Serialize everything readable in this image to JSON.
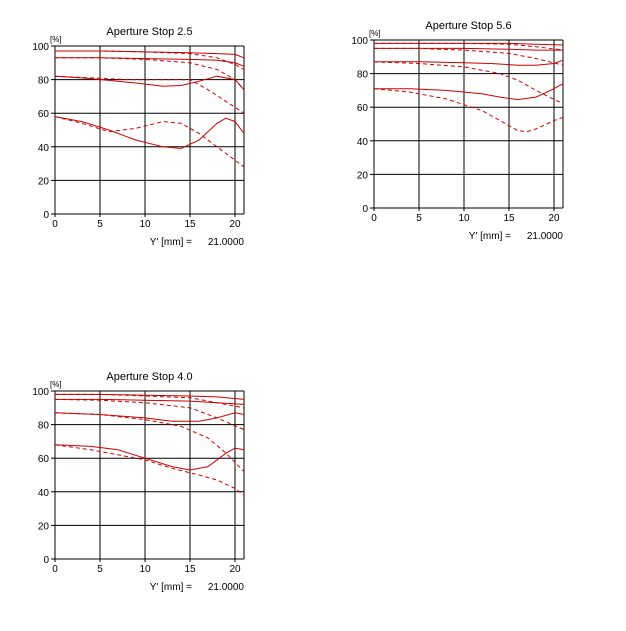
{
  "chart_data": [
    {
      "type": "line",
      "title": "Aperture Stop 2.5",
      "y_unit_label": "[%]",
      "footer_label": "Y' [mm] =",
      "footer_value": "21.0000",
      "xlim": [
        0,
        21
      ],
      "ylim": [
        0,
        100
      ],
      "x_ticks": [
        "0",
        "5",
        "10",
        "15",
        "20"
      ],
      "y_ticks": [
        "0",
        "20",
        "40",
        "60",
        "80",
        "100"
      ],
      "grid": true,
      "line_color": "#cc0000",
      "series": [
        {
          "style": "solid",
          "points": [
            [
              0,
              97
            ],
            [
              5,
              97
            ],
            [
              10,
              96.5
            ],
            [
              15,
              96
            ],
            [
              18,
              95.5
            ],
            [
              20,
              95
            ],
            [
              21,
              93
            ]
          ]
        },
        {
          "style": "dashed",
          "points": [
            [
              0,
              97
            ],
            [
              5,
              97
            ],
            [
              10,
              96.5
            ],
            [
              15,
              95.5
            ],
            [
              18,
              93
            ],
            [
              20,
              89
            ],
            [
              21,
              86
            ]
          ]
        },
        {
          "style": "solid",
          "points": [
            [
              0,
              93
            ],
            [
              5,
              93
            ],
            [
              10,
              92.5
            ],
            [
              15,
              92
            ],
            [
              18,
              91.5
            ],
            [
              20,
              90
            ],
            [
              21,
              88
            ]
          ]
        },
        {
          "style": "dashed",
          "points": [
            [
              0,
              93
            ],
            [
              5,
              93
            ],
            [
              10,
              92
            ],
            [
              15,
              90
            ],
            [
              18,
              86
            ],
            [
              20,
              80
            ],
            [
              21,
              74
            ]
          ]
        },
        {
          "style": "solid",
          "points": [
            [
              0,
              82
            ],
            [
              3,
              81
            ],
            [
              6,
              79.5
            ],
            [
              9,
              78
            ],
            [
              12,
              76
            ],
            [
              14,
              76.5
            ],
            [
              16,
              79
            ],
            [
              18,
              82
            ],
            [
              20,
              80
            ],
            [
              21,
              74
            ]
          ]
        },
        {
          "style": "dashed",
          "points": [
            [
              0,
              82
            ],
            [
              4,
              81
            ],
            [
              8,
              80
            ],
            [
              12,
              80
            ],
            [
              15,
              80
            ],
            [
              17,
              74
            ],
            [
              19,
              67
            ],
            [
              21,
              60
            ]
          ]
        },
        {
          "style": "solid",
          "points": [
            [
              0,
              58
            ],
            [
              3,
              55
            ],
            [
              6,
              50
            ],
            [
              9,
              44
            ],
            [
              12,
              40
            ],
            [
              14,
              39
            ],
            [
              16,
              44
            ],
            [
              18,
              54
            ],
            [
              19,
              57
            ],
            [
              20,
              55
            ],
            [
              21,
              48
            ]
          ]
        },
        {
          "style": "dashed",
          "points": [
            [
              0,
              58
            ],
            [
              3,
              54
            ],
            [
              6,
              49
            ],
            [
              9,
              51
            ],
            [
              12,
              55
            ],
            [
              14,
              54
            ],
            [
              16,
              48
            ],
            [
              18,
              40
            ],
            [
              20,
              32
            ],
            [
              21,
              28
            ]
          ]
        }
      ]
    },
    {
      "type": "line",
      "title": "Aperture Stop 5.6",
      "y_unit_label": "[%]",
      "footer_label": "Y' [mm] =",
      "footer_value": "21.0000",
      "xlim": [
        0,
        21
      ],
      "ylim": [
        0,
        100
      ],
      "x_ticks": [
        "0",
        "5",
        "10",
        "15",
        "20"
      ],
      "y_ticks": [
        "0",
        "20",
        "40",
        "60",
        "80",
        "100"
      ],
      "grid": true,
      "line_color": "#cc0000",
      "series": [
        {
          "style": "solid",
          "points": [
            [
              0,
              98
            ],
            [
              5,
              98
            ],
            [
              10,
              98
            ],
            [
              15,
              98
            ],
            [
              18,
              97.5
            ],
            [
              21,
              97
            ]
          ]
        },
        {
          "style": "dashed",
          "points": [
            [
              0,
              98
            ],
            [
              5,
              98
            ],
            [
              10,
              98
            ],
            [
              15,
              97.5
            ],
            [
              18,
              96
            ],
            [
              21,
              94
            ]
          ]
        },
        {
          "style": "solid",
          "points": [
            [
              0,
              95
            ],
            [
              5,
              95
            ],
            [
              10,
              95
            ],
            [
              15,
              94.5
            ],
            [
              18,
              94
            ],
            [
              21,
              94
            ]
          ]
        },
        {
          "style": "dashed",
          "points": [
            [
              0,
              95
            ],
            [
              5,
              95
            ],
            [
              10,
              94
            ],
            [
              15,
              92
            ],
            [
              18,
              89
            ],
            [
              21,
              85
            ]
          ]
        },
        {
          "style": "solid",
          "points": [
            [
              0,
              87
            ],
            [
              5,
              87
            ],
            [
              10,
              86.5
            ],
            [
              13,
              86
            ],
            [
              16,
              85
            ],
            [
              18,
              85
            ],
            [
              20,
              86
            ],
            [
              21,
              88
            ]
          ]
        },
        {
          "style": "dashed",
          "points": [
            [
              0,
              87
            ],
            [
              5,
              86
            ],
            [
              10,
              84
            ],
            [
              14,
              80
            ],
            [
              16,
              76
            ],
            [
              18,
              70
            ],
            [
              21,
              62
            ]
          ]
        },
        {
          "style": "solid",
          "points": [
            [
              0,
              71
            ],
            [
              4,
              71
            ],
            [
              8,
              70
            ],
            [
              12,
              68
            ],
            [
              14,
              66
            ],
            [
              16,
              64.5
            ],
            [
              18,
              66
            ],
            [
              20,
              71
            ],
            [
              21,
              74
            ]
          ]
        },
        {
          "style": "dashed",
          "points": [
            [
              0,
              71
            ],
            [
              4,
              69
            ],
            [
              8,
              65
            ],
            [
              12,
              58
            ],
            [
              14,
              52
            ],
            [
              16,
              46
            ],
            [
              17,
              45.5
            ],
            [
              18,
              47
            ],
            [
              20,
              52
            ],
            [
              21,
              54
            ]
          ]
        }
      ]
    },
    {
      "type": "line",
      "title": "Aperture Stop 4.0",
      "y_unit_label": "[%]",
      "footer_label": "Y' [mm] =",
      "footer_value": "21.0000",
      "xlim": [
        0,
        21
      ],
      "ylim": [
        0,
        100
      ],
      "x_ticks": [
        "0",
        "5",
        "10",
        "15",
        "20"
      ],
      "y_ticks": [
        "0",
        "20",
        "40",
        "60",
        "80",
        "100"
      ],
      "grid": true,
      "line_color": "#cc0000",
      "series": [
        {
          "style": "solid",
          "points": [
            [
              0,
              98
            ],
            [
              5,
              98
            ],
            [
              10,
              97.5
            ],
            [
              15,
              97
            ],
            [
              18,
              96.5
            ],
            [
              21,
              95
            ]
          ]
        },
        {
          "style": "dashed",
          "points": [
            [
              0,
              98
            ],
            [
              5,
              98
            ],
            [
              10,
              97
            ],
            [
              15,
              96
            ],
            [
              18,
              93
            ],
            [
              21,
              90
            ]
          ]
        },
        {
          "style": "solid",
          "points": [
            [
              0,
              95
            ],
            [
              5,
              95
            ],
            [
              10,
              94.5
            ],
            [
              15,
              94
            ],
            [
              18,
              93
            ],
            [
              21,
              92
            ]
          ]
        },
        {
          "style": "dashed",
          "points": [
            [
              0,
              95
            ],
            [
              5,
              94.5
            ],
            [
              10,
              93
            ],
            [
              15,
              90
            ],
            [
              18,
              84
            ],
            [
              21,
              77
            ]
          ]
        },
        {
          "style": "solid",
          "points": [
            [
              0,
              87
            ],
            [
              5,
              86
            ],
            [
              10,
              84
            ],
            [
              13,
              82
            ],
            [
              16,
              82
            ],
            [
              18,
              84
            ],
            [
              20,
              87
            ],
            [
              21,
              86
            ]
          ]
        },
        {
          "style": "dashed",
          "points": [
            [
              0,
              87
            ],
            [
              5,
              86
            ],
            [
              10,
              83
            ],
            [
              14,
              79
            ],
            [
              17,
              72
            ],
            [
              19,
              63
            ],
            [
              21,
              52
            ]
          ]
        },
        {
          "style": "solid",
          "points": [
            [
              0,
              68
            ],
            [
              4,
              67
            ],
            [
              7,
              65
            ],
            [
              10,
              60
            ],
            [
              13,
              55
            ],
            [
              15,
              53
            ],
            [
              17,
              55
            ],
            [
              19,
              63
            ],
            [
              20,
              66
            ],
            [
              21,
              65
            ]
          ]
        },
        {
          "style": "dashed",
          "points": [
            [
              0,
              68
            ],
            [
              4,
              65
            ],
            [
              7,
              62
            ],
            [
              10,
              59
            ],
            [
              13,
              54
            ],
            [
              16,
              50
            ],
            [
              18,
              47
            ],
            [
              20,
              42
            ],
            [
              21,
              38
            ]
          ]
        }
      ]
    }
  ]
}
